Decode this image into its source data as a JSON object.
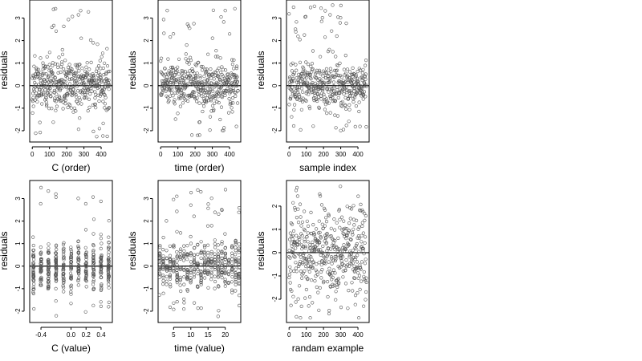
{
  "chart_data": [
    {
      "type": "scatter",
      "xlabel": "C (order)",
      "ylabel": "residuals",
      "xlim": [
        -15,
        465
      ],
      "ylim": [
        -2.5,
        3.8
      ],
      "xticks": [
        0,
        100,
        200,
        300,
        400
      ],
      "yticks": [
        -2,
        -1,
        0,
        1,
        2,
        3
      ],
      "hline": 0,
      "pattern": "homoscedastic noise around 0 with a few outliers between 2 and 3.5",
      "n": 450,
      "seed": 11
    },
    {
      "type": "scatter",
      "xlabel": "time (order)",
      "ylabel": "residuals",
      "xlim": [
        -15,
        465
      ],
      "ylim": [
        -2.5,
        3.8
      ],
      "xticks": [
        0,
        100,
        200,
        300,
        400
      ],
      "yticks": [
        -2,
        -1,
        0,
        1,
        2,
        3
      ],
      "hline": 0,
      "pattern": "homoscedastic noise around 0 with a few outliers between 2 and 3.5",
      "n": 450,
      "seed": 23
    },
    {
      "type": "scatter",
      "xlabel": "sample index",
      "ylabel": "residuals",
      "xlim": [
        -15,
        465
      ],
      "ylim": [
        -2.5,
        3.8
      ],
      "xticks": [
        0,
        100,
        200,
        300,
        400
      ],
      "yticks": [
        -2,
        -1,
        0,
        1,
        2,
        3
      ],
      "hline": 0,
      "pattern": "noise around 0 with clusters of outliers near 100 and 350",
      "n": 450,
      "seed": 37
    },
    {
      "type": "scatter",
      "xlabel": "C (value)",
      "ylabel": "residuals",
      "xlim": [
        -0.55,
        0.55
      ],
      "ylim": [
        -2.5,
        3.8
      ],
      "xticks": [
        -0.4,
        0.0,
        0.2,
        0.4
      ],
      "ytick_labels_shown": true,
      "yticks": [
        -2,
        -1,
        0,
        1,
        2,
        3
      ],
      "hline": 0,
      "pattern": "points stacked in vertical columns at discrete C values",
      "x_levels": [
        -0.5,
        -0.4,
        -0.3,
        -0.2,
        -0.1,
        0.0,
        0.1,
        0.2,
        0.3,
        0.4,
        0.5
      ],
      "n": 450,
      "seed": 41
    },
    {
      "type": "scatter",
      "xlabel": "time (value)",
      "ylabel": "residuals",
      "xlim": [
        0.5,
        24.5
      ],
      "ylim": [
        -2.5,
        3.8
      ],
      "xticks": [
        5,
        10,
        15,
        20
      ],
      "yticks": [
        -2,
        -1,
        0,
        1,
        2,
        3
      ],
      "hline": 0,
      "pattern": "points stacked in vertical columns at integer time values 1 to 24",
      "x_levels": [
        1,
        2,
        3,
        4,
        5,
        6,
        7,
        8,
        9,
        10,
        11,
        12,
        13,
        14,
        15,
        16,
        17,
        18,
        19,
        20,
        21,
        22,
        23,
        24
      ],
      "n": 450,
      "seed": 53
    },
    {
      "type": "scatter",
      "xlabel": "randam example",
      "ylabel": "residuals",
      "xlim": [
        -15,
        465
      ],
      "ylim": [
        -3.0,
        3.1
      ],
      "xticks": [
        0,
        100,
        200,
        300,
        400
      ],
      "yticks": [
        -2,
        -1,
        0,
        1,
        2
      ],
      "hline": 0,
      "pattern": "pure random normal noise around 0",
      "n": 450,
      "seed": 67
    }
  ]
}
